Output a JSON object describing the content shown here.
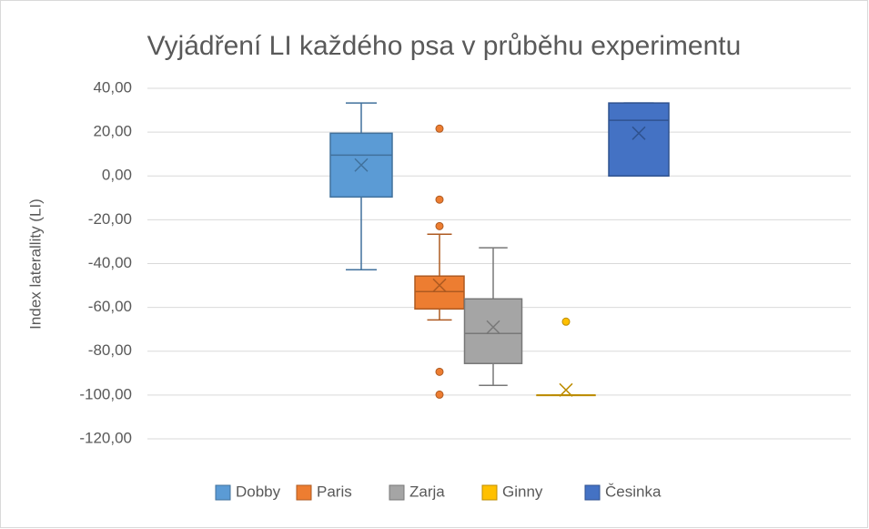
{
  "chart_data": {
    "type": "box",
    "title": "Vyjádření LI každého psa v průběhu experimentu",
    "y_label": "Index laterallity (LI)",
    "ylim": [
      -120,
      40
    ],
    "yticks": [
      {
        "value": 40,
        "label": "40,00"
      },
      {
        "value": 20,
        "label": "20,00"
      },
      {
        "value": 0,
        "label": "0,00"
      },
      {
        "value": -20,
        "label": "-20,00"
      },
      {
        "value": -40,
        "label": "-40,00"
      },
      {
        "value": -60,
        "label": "-60,00"
      },
      {
        "value": -80,
        "label": "-80,00"
      },
      {
        "value": -100,
        "label": "-100,00"
      },
      {
        "value": -120,
        "label": "-120,00"
      }
    ],
    "grid": true,
    "legend": "bottom",
    "series": [
      {
        "name": "Dobby",
        "color": "#5b9bd5",
        "border": "#41719c",
        "min": -42.8,
        "q1": -9.6,
        "median": 9.5,
        "q3": 19.5,
        "max": 33.3,
        "mean": 5,
        "outliers": []
      },
      {
        "name": "Paris",
        "color": "#ed7d31",
        "border": "#ae5a21",
        "min": -65.7,
        "q1": -60.7,
        "median": -52.8,
        "q3": -45.7,
        "max": -26.6,
        "mean": -49.9,
        "outliers": [
          21.6,
          -10.8,
          -22.9,
          -89.4,
          -99.8
        ]
      },
      {
        "name": "Zarja",
        "color": "#a5a5a5",
        "border": "#787878",
        "min": -95.6,
        "q1": -85.6,
        "median": -71.9,
        "q3": -56.1,
        "max": -32.8,
        "mean": -69,
        "outliers": []
      },
      {
        "name": "Ginny",
        "color": "#ffc000",
        "border": "#bc8c00",
        "min": -100,
        "q1": -100,
        "median": -100,
        "q3": -100,
        "max": -100,
        "mean": -97.7,
        "outliers": [
          -66.5
        ]
      },
      {
        "name": "Česinka",
        "color": "#4472c4",
        "border": "#2f528f",
        "min": 0,
        "q1": 0,
        "median": 25.4,
        "q3": 33.3,
        "max": 33.3,
        "mean": 19.5,
        "outliers": []
      }
    ]
  }
}
